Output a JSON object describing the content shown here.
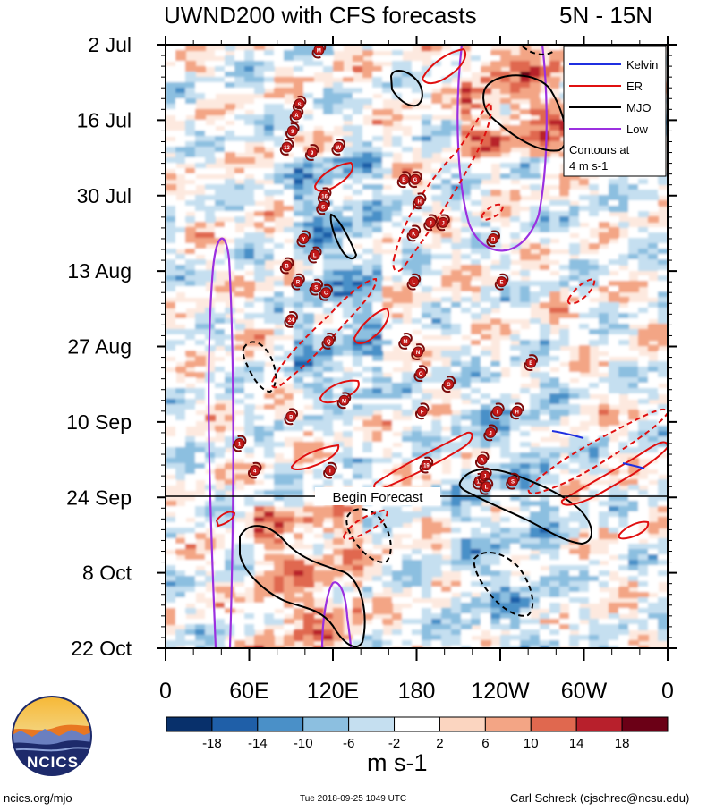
{
  "chart_data": {
    "type": "heatmap",
    "variable": "UWND200",
    "title": "UWND200 with CFS forecasts",
    "region": "5N - 15N",
    "units": "m s-1",
    "y_ticks": [
      "2 Jul",
      "16 Jul",
      "30 Jul",
      "13 Aug",
      "27 Aug",
      "10 Sep",
      "24 Sep",
      "8 Oct",
      "22 Oct"
    ],
    "x_ticks": [
      "0",
      "60E",
      "120E",
      "180",
      "120W",
      "60W",
      "0"
    ],
    "x_range_deg": [
      0,
      360
    ],
    "forecast_line_label": "Begin Forecast",
    "forecast_start": "24 Sep",
    "colorbar_levels": [
      "-18",
      "-14",
      "-10",
      "-6",
      "-2",
      "2",
      "6",
      "10",
      "14",
      "18"
    ],
    "colorbar_colors": [
      "#08306b",
      "#1f5fa8",
      "#4a90c8",
      "#8cbfe0",
      "#c5dff0",
      "#ffffff",
      "#fbd5c0",
      "#f3a585",
      "#e0684f",
      "#b8202c",
      "#6b0016"
    ],
    "legend": [
      {
        "name": "Kelvin",
        "color": "#1f2fe0",
        "style": "solid"
      },
      {
        "name": "ER",
        "color": "#e01010",
        "style": "solid"
      },
      {
        "name": "MJO",
        "color": "#000000",
        "style": "solid"
      },
      {
        "name": "Low",
        "color": "#9b30e0",
        "style": "solid"
      }
    ],
    "legend_note_1": "Contours at",
    "legend_note_2": "4 m s-1",
    "storm_markers": [
      {
        "label": "M",
        "lon": 110,
        "day": 1
      },
      {
        "label": "S",
        "lon": 96,
        "day": 11
      },
      {
        "label": "A",
        "lon": 94,
        "day": 13
      },
      {
        "label": "9",
        "lon": 91,
        "day": 16
      },
      {
        "label": "13",
        "lon": 87,
        "day": 19
      },
      {
        "label": "9",
        "lon": 105,
        "day": 20
      },
      {
        "label": "W",
        "lon": 124,
        "day": 19
      },
      {
        "label": "B",
        "lon": 171,
        "day": 25
      },
      {
        "label": "G",
        "lon": 179,
        "day": 25
      },
      {
        "label": "16",
        "lon": 114,
        "day": 28
      },
      {
        "label": "S",
        "lon": 113,
        "day": 30
      },
      {
        "label": "H",
        "lon": 182,
        "day": 29
      },
      {
        "label": "J",
        "lon": 190,
        "day": 33
      },
      {
        "label": "K",
        "lon": 178,
        "day": 35
      },
      {
        "label": "J",
        "lon": 199,
        "day": 33
      },
      {
        "label": "D",
        "lon": 235,
        "day": 36
      },
      {
        "label": "Y",
        "lon": 99,
        "day": 36
      },
      {
        "label": "L",
        "lon": 107,
        "day": 39
      },
      {
        "label": "B",
        "lon": 87,
        "day": 41
      },
      {
        "label": "R",
        "lon": 95,
        "day": 44
      },
      {
        "label": "S",
        "lon": 108,
        "day": 45
      },
      {
        "label": "C",
        "lon": 115,
        "day": 46
      },
      {
        "label": "L",
        "lon": 178,
        "day": 44
      },
      {
        "label": "E",
        "lon": 241,
        "day": 44
      },
      {
        "label": "24",
        "lon": 90,
        "day": 51
      },
      {
        "label": "Q",
        "lon": 117,
        "day": 55
      },
      {
        "label": "M",
        "lon": 172,
        "day": 55
      },
      {
        "label": "N",
        "lon": 181,
        "day": 57
      },
      {
        "label": "O",
        "lon": 183,
        "day": 61
      },
      {
        "label": "G",
        "lon": 203,
        "day": 63
      },
      {
        "label": "E",
        "lon": 262,
        "day": 59
      },
      {
        "label": "M",
        "lon": 128,
        "day": 66
      },
      {
        "label": "B",
        "lon": 90,
        "day": 69
      },
      {
        "label": "F",
        "lon": 184,
        "day": 68
      },
      {
        "label": "I",
        "lon": 238,
        "day": 68
      },
      {
        "label": "H",
        "lon": 252,
        "day": 68
      },
      {
        "label": "J",
        "lon": 233,
        "day": 72
      },
      {
        "label": "1",
        "lon": 53,
        "day": 74
      },
      {
        "label": "4",
        "lon": 64,
        "day": 79
      },
      {
        "label": "T",
        "lon": 118,
        "day": 79
      },
      {
        "label": "19",
        "lon": 187,
        "day": 78
      },
      {
        "label": "11",
        "lon": 225,
        "day": 81
      },
      {
        "label": "J",
        "lon": 229,
        "day": 80
      },
      {
        "label": "L",
        "lon": 230,
        "day": 82
      },
      {
        "label": "S",
        "lon": 249,
        "day": 81
      },
      {
        "label": "A",
        "lon": 227,
        "day": 77
      }
    ]
  },
  "footer": {
    "left": "ncics.org/mjo",
    "timestamp": "Tue 2018-09-25 1049 UTC",
    "author": "Carl Schreck (cjschrec@ncsu.edu)"
  },
  "logo": {
    "text": "NCICS"
  }
}
